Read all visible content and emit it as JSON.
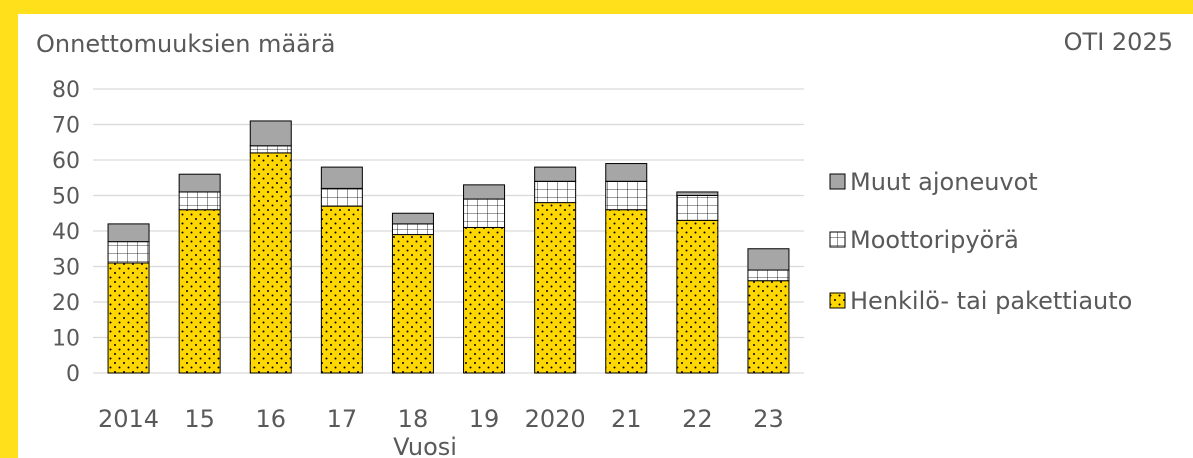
{
  "header": {
    "ylabel_top": "Onnettomuuksien määrä",
    "source": "OTI 2025"
  },
  "colors": {
    "frame": "#FFE01A",
    "henkilo": "#FFD700",
    "moottoripyora": "#FFFFFF",
    "muut": "#A6A6A6",
    "grid": "#D9D9D9",
    "text": "#595959"
  },
  "chart_data": {
    "type": "bar",
    "stacked": true,
    "title": "",
    "xlabel": "Vuosi",
    "ylabel": "Onnettomuuksien määrä",
    "ylim": [
      0,
      80
    ],
    "yticks": [
      0,
      10,
      20,
      30,
      40,
      50,
      60,
      70,
      80
    ],
    "grid": true,
    "legend_position": "right",
    "categories": [
      "2014",
      "15",
      "16",
      "17",
      "18",
      "19",
      "2020",
      "21",
      "22",
      "23"
    ],
    "series": [
      {
        "name": "Henkilö- tai pakettiauto",
        "pattern": "dots",
        "values": [
          31,
          46,
          62,
          47,
          39,
          41,
          48,
          46,
          43,
          26
        ]
      },
      {
        "name": "Moottoripyörä",
        "pattern": "grid",
        "values": [
          6,
          5,
          2,
          5,
          3,
          8,
          6,
          8,
          7,
          3
        ]
      },
      {
        "name": "Muut ajoneuvot",
        "pattern": "solid",
        "values": [
          5,
          5,
          7,
          6,
          3,
          4,
          4,
          5,
          1,
          6
        ]
      }
    ],
    "legend_order": [
      "Muut ajoneuvot",
      "Moottoripyörä",
      "Henkilö- tai pakettiauto"
    ]
  }
}
